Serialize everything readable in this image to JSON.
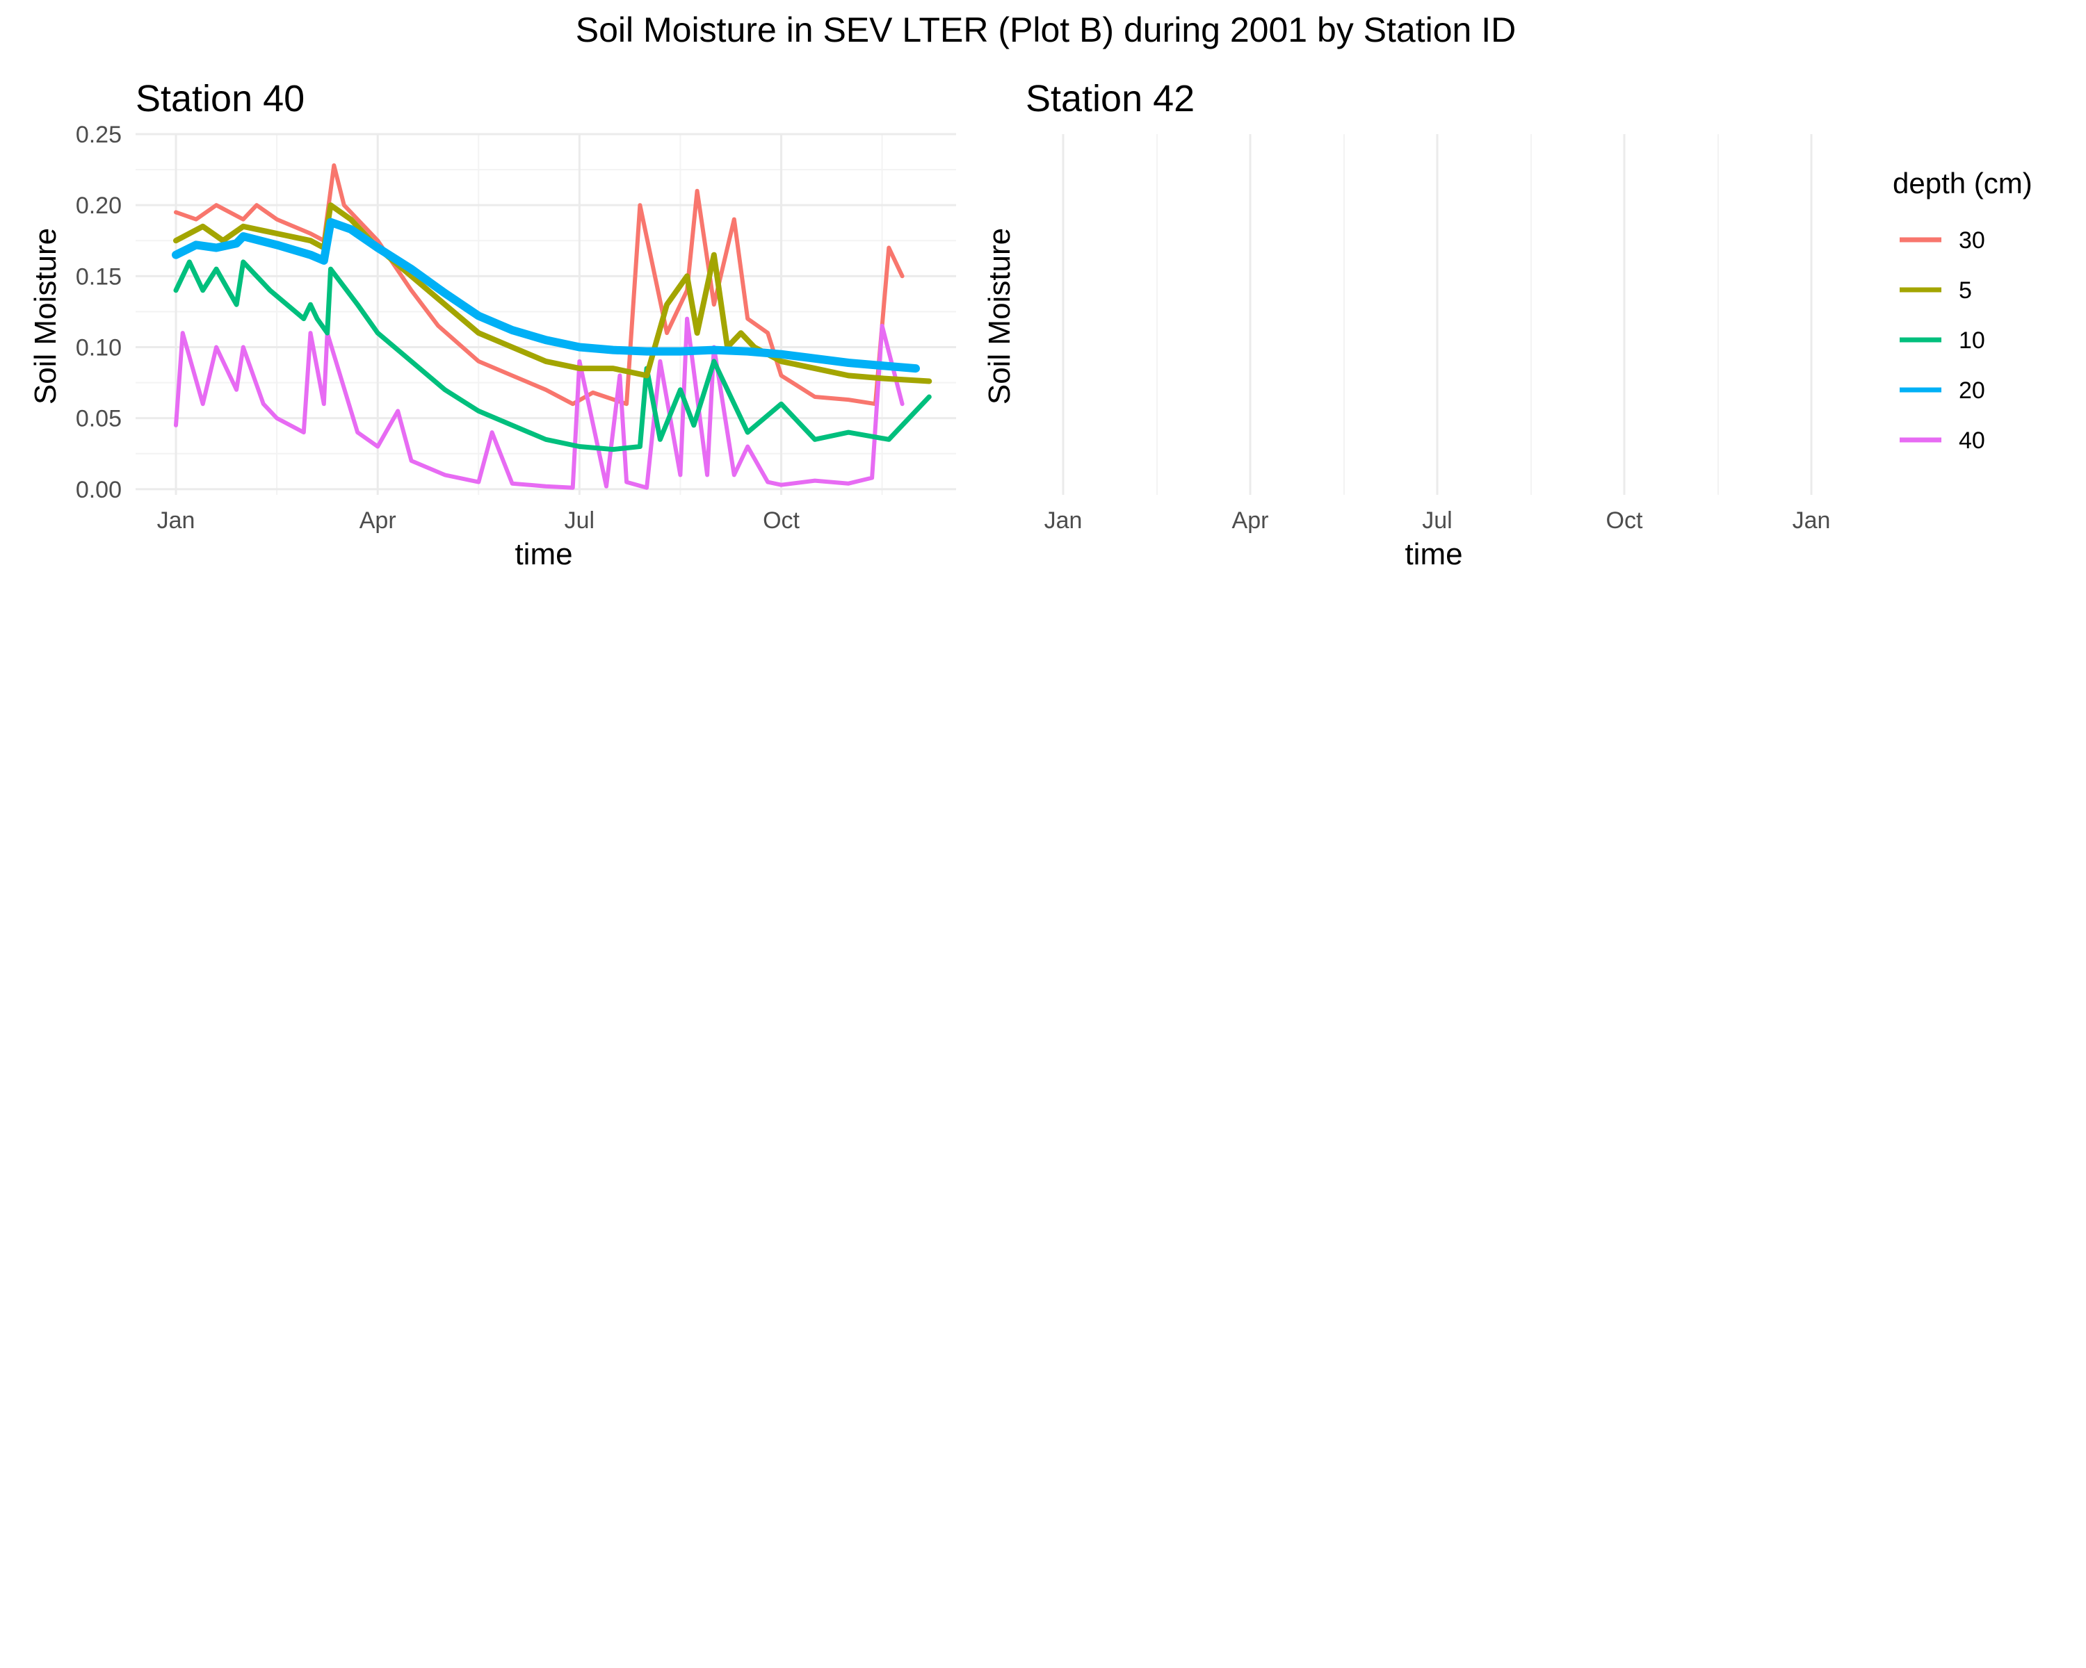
{
  "chart_data": {
    "type": "line",
    "title": "Soil Moisture in SEV LTER (Plot B) during 2001 by Station ID",
    "legend": {
      "title": "depth (cm)",
      "placement": "right",
      "entries": [
        {
          "label": "30",
          "color": "#F8766D"
        },
        {
          "label": "5",
          "color": "#A3A500"
        },
        {
          "label": "10",
          "color": "#00BF7D"
        },
        {
          "label": "20",
          "color": "#00B0F6"
        },
        {
          "label": "40",
          "color": "#E76BF3"
        }
      ]
    },
    "panels": [
      {
        "title": "Station  40",
        "xlabel": "time",
        "ylabel": "Soil Moisture",
        "x_ticks": [
          "Jan",
          "Apr",
          "Jul",
          "Oct"
        ],
        "x_range_months": [
          -0.6,
          11.6
        ],
        "y_ticks": [
          "0.00",
          "0.05",
          "0.10",
          "0.15",
          "0.20",
          "0.25"
        ],
        "ylim": [
          -0.004,
          0.25
        ],
        "grid": true,
        "series": [
          {
            "depth": "30",
            "color": "#F8766D",
            "x": [
              0.0,
              0.3,
              0.6,
              1.0,
              1.2,
              1.5,
              2.0,
              2.2,
              2.35,
              2.5,
              3.0,
              3.5,
              3.9,
              4.5,
              5.0,
              5.5,
              5.9,
              6.2,
              6.7,
              6.9,
              7.3,
              7.6,
              7.75,
              8.0,
              8.3,
              8.5,
              8.8,
              9.0,
              9.5,
              10.0,
              10.4,
              10.6,
              10.8
            ],
            "y": [
              0.195,
              0.19,
              0.2,
              0.19,
              0.2,
              0.19,
              0.18,
              0.175,
              0.228,
              0.2,
              0.175,
              0.14,
              0.115,
              0.09,
              0.08,
              0.07,
              0.06,
              0.068,
              0.06,
              0.2,
              0.11,
              0.14,
              0.21,
              0.13,
              0.19,
              0.12,
              0.11,
              0.08,
              0.065,
              0.063,
              0.06,
              0.17,
              0.15
            ]
          },
          {
            "depth": "5",
            "color": "#A3A500",
            "x": [
              0.0,
              0.4,
              0.7,
              1.0,
              1.5,
              2.0,
              2.2,
              2.3,
              2.6,
              3.0,
              3.5,
              4.0,
              4.5,
              5.0,
              5.5,
              6.0,
              6.5,
              7.0,
              7.3,
              7.6,
              7.75,
              8.0,
              8.2,
              8.4,
              8.6,
              9.0,
              9.5,
              10.0,
              10.5,
              11.2
            ],
            "y": [
              0.175,
              0.185,
              0.175,
              0.185,
              0.18,
              0.175,
              0.17,
              0.2,
              0.19,
              0.17,
              0.15,
              0.13,
              0.11,
              0.1,
              0.09,
              0.085,
              0.085,
              0.08,
              0.13,
              0.15,
              0.11,
              0.165,
              0.1,
              0.11,
              0.1,
              0.09,
              0.085,
              0.08,
              0.078,
              0.076
            ]
          },
          {
            "depth": "10",
            "color": "#00BF7D",
            "x": [
              0.0,
              0.2,
              0.4,
              0.6,
              0.9,
              1.0,
              1.4,
              1.9,
              2.0,
              2.1,
              2.25,
              2.3,
              2.7,
              3.0,
              3.5,
              4.0,
              4.5,
              5.0,
              5.5,
              6.0,
              6.5,
              6.9,
              7.0,
              7.2,
              7.5,
              7.7,
              8.0,
              8.5,
              9.0,
              9.5,
              10.0,
              10.6,
              11.2
            ],
            "y": [
              0.14,
              0.16,
              0.14,
              0.155,
              0.13,
              0.16,
              0.14,
              0.12,
              0.13,
              0.12,
              0.11,
              0.155,
              0.13,
              0.11,
              0.09,
              0.07,
              0.055,
              0.045,
              0.035,
              0.03,
              0.028,
              0.03,
              0.085,
              0.035,
              0.07,
              0.045,
              0.09,
              0.04,
              0.06,
              0.035,
              0.04,
              0.035,
              0.065
            ]
          },
          {
            "depth": "20",
            "color": "#00B0F6",
            "x": [
              0.0,
              0.3,
              0.6,
              0.9,
              1.0,
              1.5,
              2.0,
              2.2,
              2.3,
              2.6,
              3.0,
              3.5,
              4.0,
              4.5,
              5.0,
              5.5,
              6.0,
              6.5,
              7.0,
              7.5,
              8.0,
              8.5,
              9.0,
              9.5,
              10.0,
              10.5,
              11.0
            ],
            "y": [
              0.165,
              0.172,
              0.17,
              0.173,
              0.178,
              0.172,
              0.165,
              0.161,
              0.188,
              0.183,
              0.17,
              0.155,
              0.138,
              0.122,
              0.112,
              0.105,
              0.1,
              0.098,
              0.097,
              0.097,
              0.098,
              0.097,
              0.095,
              0.092,
              0.089,
              0.087,
              0.085
            ]
          },
          {
            "depth": "40",
            "color": "#E76BF3",
            "x": [
              0.0,
              0.1,
              0.4,
              0.6,
              0.9,
              1.0,
              1.3,
              1.5,
              1.9,
              2.0,
              2.2,
              2.25,
              2.7,
              3.0,
              3.3,
              3.5,
              4.0,
              4.5,
              4.7,
              5.0,
              5.5,
              5.9,
              6.0,
              6.4,
              6.6,
              6.7,
              7.0,
              7.2,
              7.5,
              7.6,
              7.9,
              8.0,
              8.3,
              8.5,
              8.8,
              9.0,
              9.5,
              10.0,
              10.35,
              10.5,
              10.8
            ],
            "y": [
              0.045,
              0.11,
              0.06,
              0.1,
              0.07,
              0.1,
              0.06,
              0.05,
              0.04,
              0.11,
              0.06,
              0.11,
              0.04,
              0.03,
              0.055,
              0.02,
              0.01,
              0.005,
              0.04,
              0.004,
              0.002,
              0.001,
              0.09,
              0.002,
              0.08,
              0.005,
              0.001,
              0.09,
              0.01,
              0.12,
              0.01,
              0.1,
              0.01,
              0.03,
              0.005,
              0.003,
              0.006,
              0.004,
              0.008,
              0.115,
              0.06
            ]
          }
        ]
      },
      {
        "title": "Station  42",
        "xlabel": "time",
        "ylabel": "Soil Moisture",
        "x_ticks": [
          "Jan",
          "Apr",
          "Jul",
          "Oct",
          "Jan"
        ],
        "grid": true,
        "series": []
      }
    ]
  }
}
